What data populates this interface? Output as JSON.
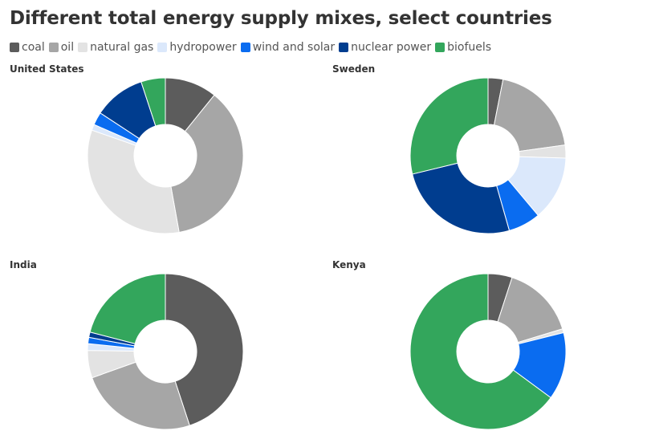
{
  "title": "Different total energy supply mixes, select countries",
  "legend": [
    {
      "label": "coal",
      "color": "#5c5c5c"
    },
    {
      "label": "oil",
      "color": "#a6a6a6"
    },
    {
      "label": "natural gas",
      "color": "#e3e3e3"
    },
    {
      "label": "hydropower",
      "color": "#dbe8fb"
    },
    {
      "label": "wind and solar",
      "color": "#0a6cf0"
    },
    {
      "label": "nuclear power",
      "color": "#003d8f"
    },
    {
      "label": "biofuels",
      "color": "#33a65c"
    }
  ],
  "chart_data": [
    {
      "type": "pie",
      "title": "United States",
      "categories": [
        "coal",
        "oil",
        "natural gas",
        "hydropower",
        "wind and solar",
        "nuclear power",
        "biofuels"
      ],
      "values": [
        10.5,
        35.3,
        32.2,
        1.2,
        2.6,
        10.4,
        4.9
      ]
    },
    {
      "type": "pie",
      "title": "Sweden",
      "categories": [
        "coal",
        "oil",
        "natural gas",
        "hydropower",
        "wind and solar",
        "nuclear power",
        "biofuels"
      ],
      "values": [
        3.1,
        19.7,
        2.7,
        13.4,
        6.7,
        25.6,
        28.8
      ]
    },
    {
      "type": "pie",
      "title": "India",
      "categories": [
        "coal",
        "oil",
        "natural gas",
        "hydropower",
        "wind and solar",
        "nuclear power",
        "biofuels"
      ],
      "values": [
        45,
        24.6,
        5.7,
        1.4,
        1.3,
        1.1,
        21
      ]
    },
    {
      "type": "pie",
      "title": "Kenya",
      "categories": [
        "coal",
        "oil",
        "natural gas",
        "hydropower",
        "wind and solar",
        "nuclear power",
        "biofuels"
      ],
      "values": [
        5,
        15.3,
        0.8,
        0,
        14,
        0,
        64.9
      ]
    }
  ]
}
